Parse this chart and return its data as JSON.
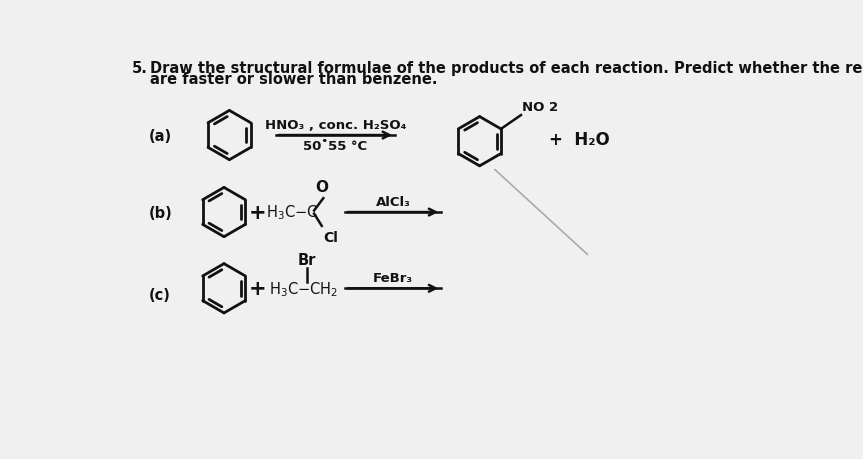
{
  "bg_color": "#f0f0f0",
  "text_color": "#111111",
  "title_number": "5.",
  "title_line1": "Draw the structural formulae of the products of each reaction. Predict whether the reactions",
  "title_line2": "are faster or slower than benzene.",
  "label_a": "(a)",
  "label_b": "(b)",
  "label_c": "(c)",
  "rxn_a_top": "HNO₃ , conc. H₂SO₄",
  "rxn_a_bot": "50˚55 °C",
  "rxn_a_no2": "NO 2",
  "rxn_a_plus": "+  H₂O",
  "rxn_b_alcl3": "AlCl₃",
  "rxn_c_febr3": "FeBr₃",
  "font_title": 10.5,
  "font_label": 10.5,
  "font_rxn": 9.5,
  "font_chem": 10
}
